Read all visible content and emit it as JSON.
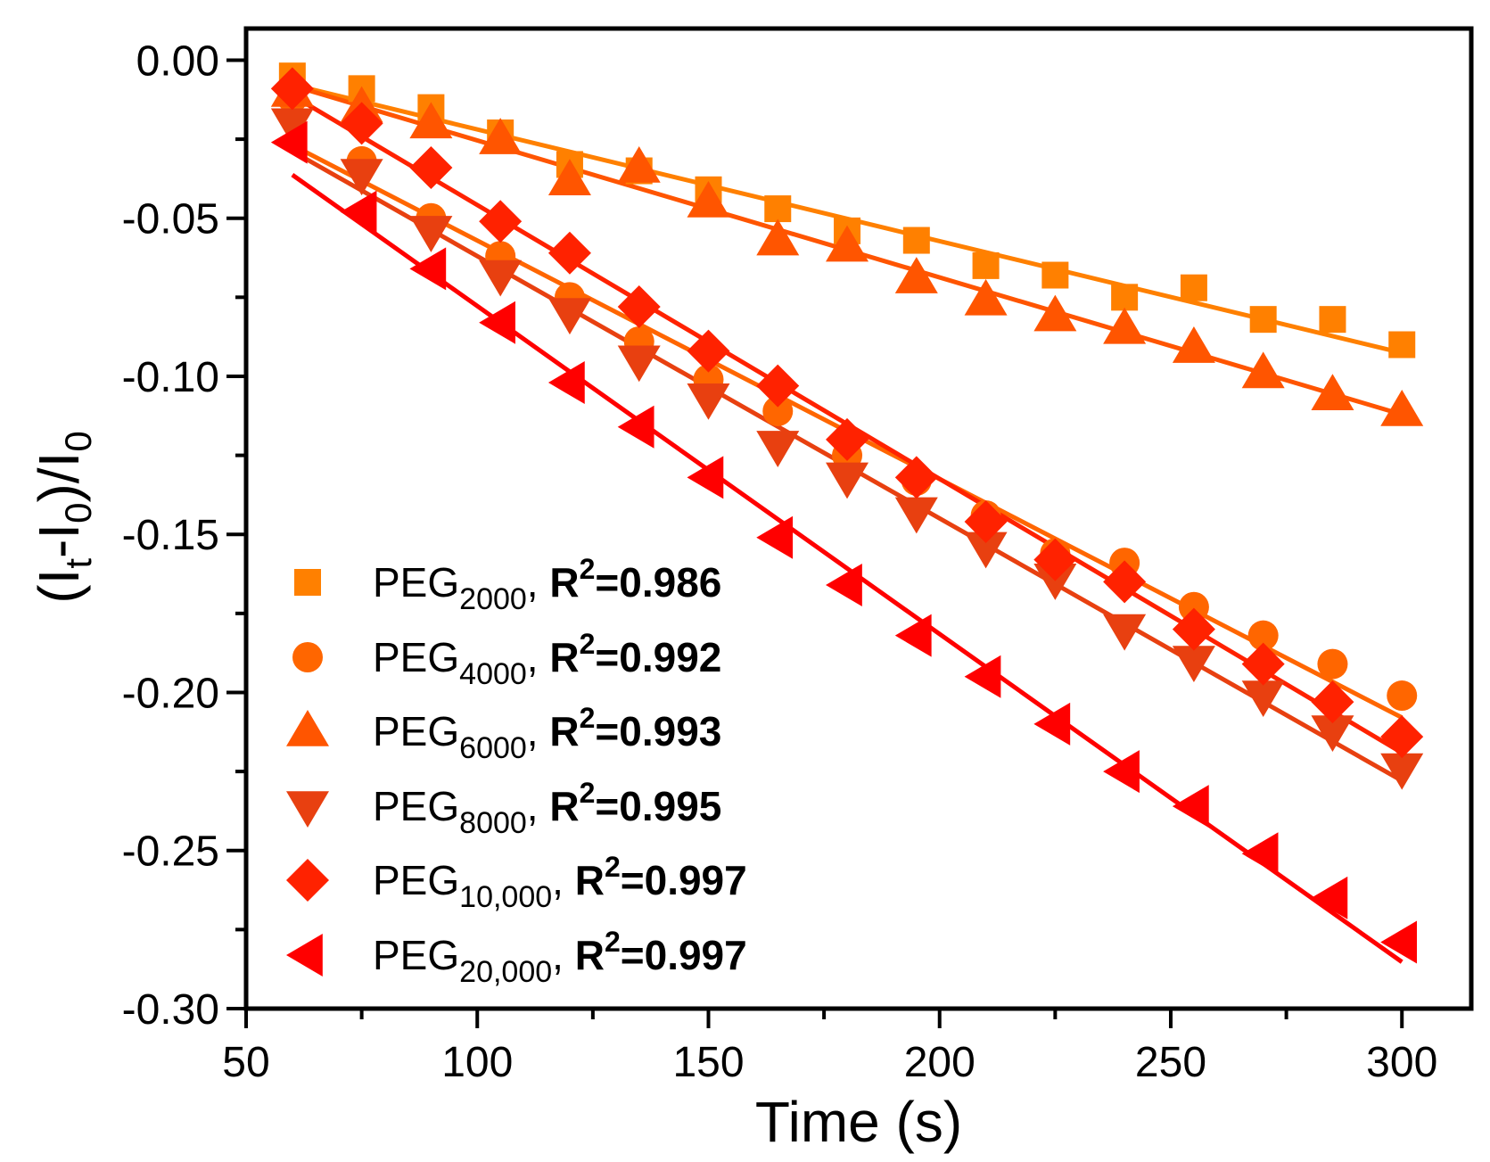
{
  "chart_data": {
    "type": "scatter",
    "xlabel": "Time (s)",
    "ylabel": {
      "main": "(I",
      "sub1": "t",
      "mid": "-I",
      "sub2": "0",
      "end": ")/I",
      "sub3": "0"
    },
    "xlim": [
      50,
      315
    ],
    "ylim": [
      -0.3,
      0.01
    ],
    "xticks": [
      50,
      100,
      150,
      200,
      250,
      300
    ],
    "xtick_labels": [
      "50",
      "100",
      "150",
      "200",
      "250",
      "300"
    ],
    "yticks": [
      0,
      -0.05,
      -0.1,
      -0.15,
      -0.2,
      -0.25,
      -0.3
    ],
    "ytick_labels": [
      "0.00",
      "-0.05",
      "-0.10",
      "-0.15",
      "-0.20",
      "-0.25",
      "-0.30"
    ],
    "grid": false,
    "legend_position": "bottom-left",
    "x": [
      60,
      75,
      90,
      105,
      120,
      135,
      150,
      165,
      180,
      195,
      210,
      225,
      240,
      255,
      270,
      285,
      300
    ],
    "series": [
      {
        "name": "PEG",
        "sub": "2000",
        "r2_label": "R",
        "r2_sup": "2",
        "r2_value": "=0.986",
        "marker": "square",
        "color": "#ff8000",
        "values": [
          -0.005,
          -0.009,
          -0.015,
          -0.023,
          -0.033,
          -0.035,
          -0.041,
          -0.047,
          -0.054,
          -0.057,
          -0.065,
          -0.068,
          -0.075,
          -0.072,
          -0.082,
          -0.082,
          -0.09
        ]
      },
      {
        "name": "PEG",
        "sub": "4000",
        "r2_label": "R",
        "r2_sup": "2",
        "r2_value": "=0.992",
        "marker": "circle",
        "color": "#ff6600",
        "values": [
          -0.012,
          -0.032,
          -0.05,
          -0.062,
          -0.075,
          -0.089,
          -0.101,
          -0.111,
          -0.125,
          -0.133,
          -0.144,
          -0.156,
          -0.159,
          -0.173,
          -0.182,
          -0.191,
          -0.201
        ]
      },
      {
        "name": "PEG",
        "sub": "6000",
        "r2_label": "R",
        "r2_sup": "2",
        "r2_value": "=0.993",
        "marker": "triangle-up",
        "color": "#ff5500",
        "values": [
          -0.01,
          -0.015,
          -0.02,
          -0.025,
          -0.038,
          -0.034,
          -0.045,
          -0.057,
          -0.059,
          -0.069,
          -0.076,
          -0.081,
          -0.085,
          -0.091,
          -0.099,
          -0.106,
          -0.111
        ]
      },
      {
        "name": "PEG",
        "sub": "8000",
        "r2_label": "R",
        "r2_sup": "2",
        "r2_value": "=0.995",
        "marker": "triangle-down",
        "color": "#e84010",
        "values": [
          -0.02,
          -0.036,
          -0.054,
          -0.068,
          -0.08,
          -0.095,
          -0.107,
          -0.122,
          -0.132,
          -0.143,
          -0.154,
          -0.164,
          -0.18,
          -0.19,
          -0.201,
          -0.212,
          -0.224
        ]
      },
      {
        "name": "PEG",
        "sub": "10,000",
        "r2_label": "R",
        "r2_sup": "2",
        "r2_value": "=0.997",
        "marker": "diamond",
        "color": "#ff2200",
        "values": [
          -0.009,
          -0.02,
          -0.034,
          -0.051,
          -0.061,
          -0.078,
          -0.092,
          -0.103,
          -0.12,
          -0.132,
          -0.146,
          -0.158,
          -0.165,
          -0.18,
          -0.191,
          -0.203,
          -0.214
        ]
      },
      {
        "name": "PEG",
        "sub": "20,000",
        "r2_label": "R",
        "r2_sup": "2",
        "r2_value": "=0.997",
        "marker": "triangle-left",
        "color": "#ff0000",
        "values": [
          -0.026,
          -0.048,
          -0.066,
          -0.083,
          -0.102,
          -0.116,
          -0.132,
          -0.151,
          -0.166,
          -0.182,
          -0.195,
          -0.21,
          -0.225,
          -0.236,
          -0.251,
          -0.265,
          -0.279
        ]
      }
    ]
  }
}
